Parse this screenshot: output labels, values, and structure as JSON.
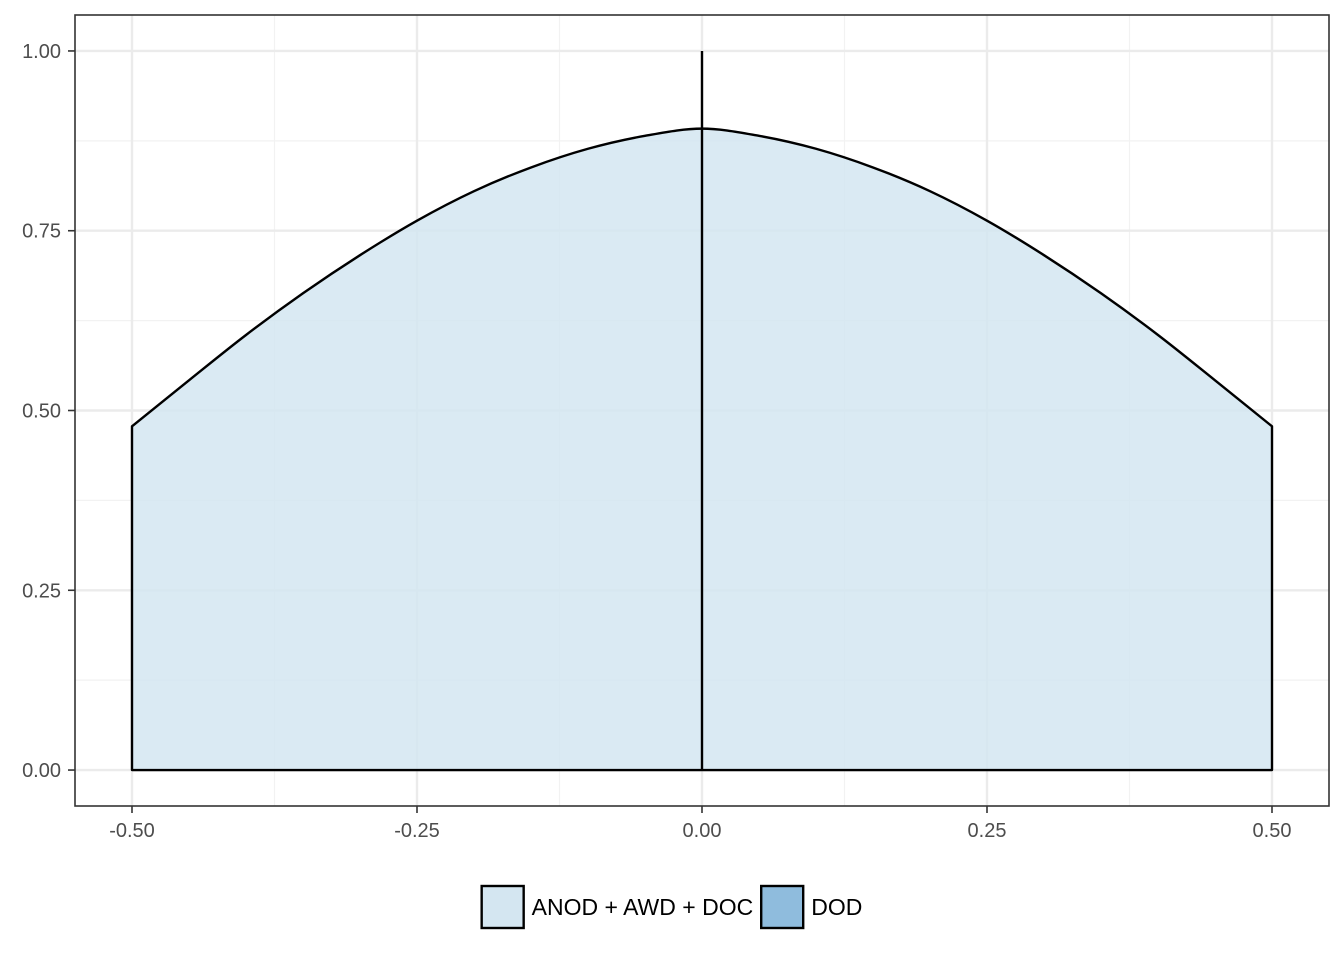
{
  "chart_data": {
    "type": "violin",
    "x_ticks": [
      "-0.50",
      "-0.25",
      "0.00",
      "0.25",
      "0.50"
    ],
    "y_ticks": [
      "0.00",
      "0.25",
      "0.50",
      "0.75",
      "1.00"
    ],
    "xlim": [
      -0.55,
      0.55
    ],
    "ylim": [
      -0.05,
      1.05
    ],
    "grid": true,
    "legend_position": "bottom",
    "legend": [
      {
        "label": "ANOD + AWD + DOC",
        "color": "#d4e6f1"
      },
      {
        "label": "DOD",
        "color": "#8fbcdd"
      }
    ],
    "series": [
      {
        "name": "ANOD + AWD + DOC",
        "fill": "#d4e6f1",
        "density_curve": {
          "x": [
            -0.5,
            -0.45,
            -0.4,
            -0.35,
            -0.3,
            -0.25,
            -0.2,
            -0.15,
            -0.1,
            -0.05,
            0.0,
            0.05,
            0.1,
            0.15,
            0.2,
            0.25,
            0.3,
            0.35,
            0.4,
            0.45,
            0.5
          ],
          "y": [
            0.478,
            0.542,
            0.605,
            0.663,
            0.716,
            0.764,
            0.805,
            0.838,
            0.864,
            0.882,
            0.892,
            0.882,
            0.864,
            0.838,
            0.805,
            0.764,
            0.716,
            0.663,
            0.605,
            0.542,
            0.478
          ]
        },
        "baseline": 0.0,
        "x_range": [
          -0.5,
          0.5
        ]
      }
    ],
    "vertical_segment": {
      "x": 0.0,
      "y_from": 0.0,
      "y_to": 1.0
    }
  }
}
